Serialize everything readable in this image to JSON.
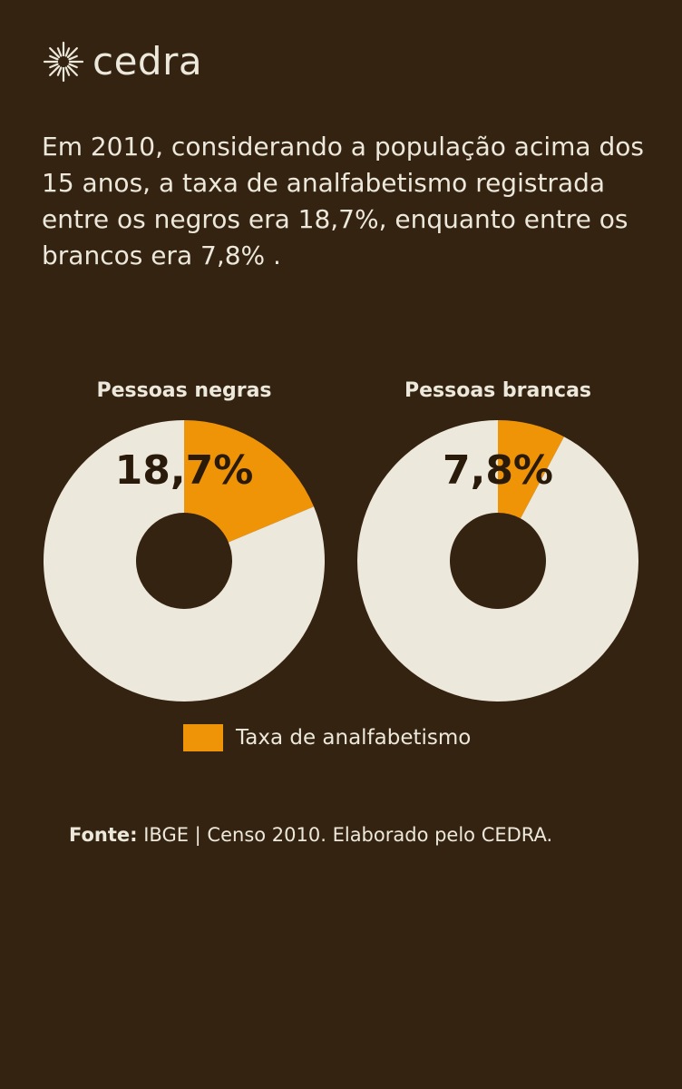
{
  "brand": {
    "name": "cedra",
    "logo_icon": "sun-burst-icon"
  },
  "intro": "Em 2010, considerando a população acima dos 15 anos, a taxa de analfabetismo registrada entre os negros era 18,7%, enquanto entre os brancos era 7,8% .",
  "colors": {
    "background": "#352311",
    "rest": "#ece8dc",
    "highlight": "#f09407",
    "text_dark": "#2a1a0a"
  },
  "chart_data": [
    {
      "type": "pie",
      "title": "Pessoas negras",
      "slices": [
        {
          "name": "Taxa de analfabetismo",
          "value": 18.7
        },
        {
          "name": "",
          "value": 81.3
        }
      ],
      "data_label": "18,7%",
      "legend": "bottom"
    },
    {
      "type": "pie",
      "title": "Pessoas brancas",
      "slices": [
        {
          "name": "Taxa de analfabetismo",
          "value": 7.8
        },
        {
          "name": "",
          "value": 92.2
        }
      ],
      "data_label": "7,8%",
      "legend": "bottom"
    }
  ],
  "legend": {
    "label": "Taxa de analfabetismo"
  },
  "source": {
    "prefix": "Fonte:",
    "text": " IBGE | Censo 2010. Elaborado pelo CEDRA."
  }
}
